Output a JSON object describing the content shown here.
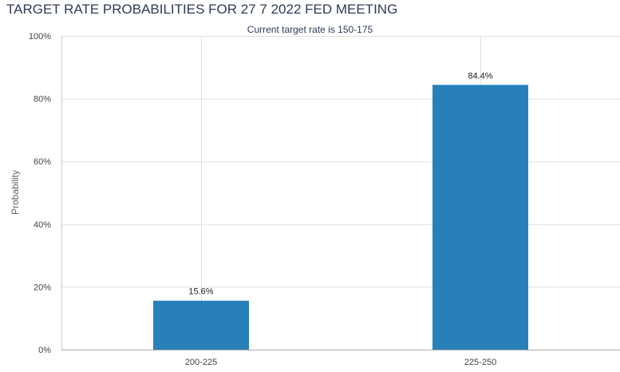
{
  "chart_data": {
    "type": "bar",
    "title": "TARGET RATE PROBABILITIES FOR 27 7 2022 FED MEETING",
    "subtitle": "Current target rate is 150-175",
    "ylabel": "Probability",
    "xlabel": "",
    "categories": [
      "200-225",
      "225-250"
    ],
    "values": [
      15.6,
      84.4
    ],
    "data_labels": [
      "15.6%",
      "84.4%"
    ],
    "ylim": [
      0,
      100
    ],
    "yticks": [
      0,
      20,
      40,
      60,
      80,
      100
    ],
    "ytick_labels": [
      "0%",
      "20%",
      "40%",
      "60%",
      "80%",
      "100%"
    ],
    "grid": true,
    "legend": "none",
    "bar_color": "#2980b9"
  }
}
